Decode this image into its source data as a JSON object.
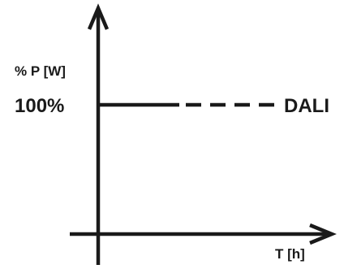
{
  "diagram": {
    "y_axis_label": "% P [W]",
    "x_axis_label": "T [h]",
    "level_label": "100%",
    "line_label": "DALI",
    "level_value": 100,
    "line_style": [
      "solid",
      "dashed"
    ],
    "color": "#1a1a1a"
  }
}
